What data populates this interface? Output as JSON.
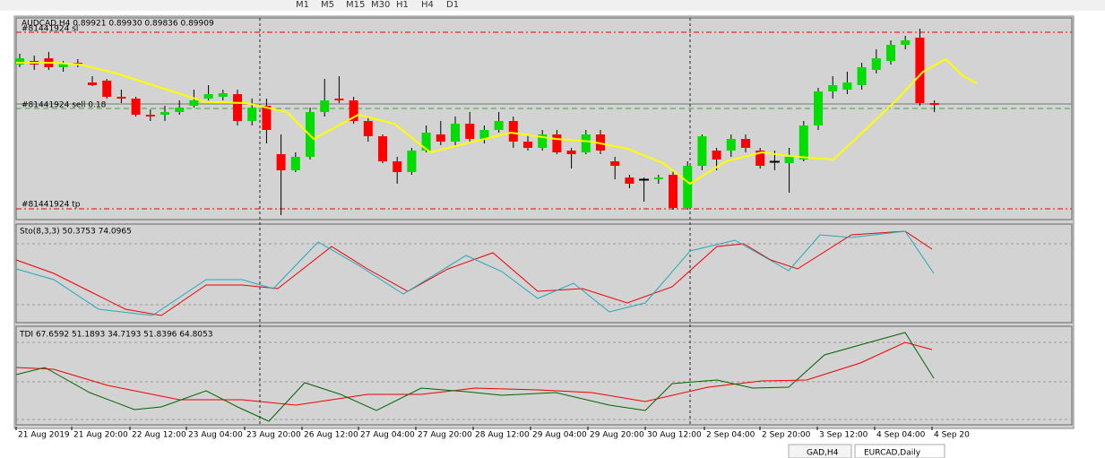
{
  "toolbar": {
    "timeframes": [
      "M1",
      "M5",
      "M15",
      "M30",
      "H1",
      "H4",
      "D1"
    ]
  },
  "main_panel": {
    "header": "AUDCAD,H4  0.89921 0.89930 0.89836 0.89909",
    "order_lines": {
      "sl": "#81441924 sl",
      "entry": "#81441924 sell 0.18",
      "tp": "#81441924 tp"
    }
  },
  "stochastic_panel": {
    "header": "Sto(8,3,3) 50.3753 74.0965"
  },
  "tdi_panel": {
    "header": "TDI 67.6592 51.1893 34.7193 51.8396 64.8053"
  },
  "time_axis": [
    "21 Aug 2019",
    "21 Aug 20:00",
    "22 Aug 12:00",
    "23 Aug 04:00",
    "23 Aug 20:00",
    "26 Aug 12:00",
    "27 Aug 04:00",
    "27 Aug 20:00",
    "28 Aug 12:00",
    "29 Aug 04:00",
    "29 Aug 20:00",
    "30 Aug 12:00",
    "2 Sep 04:00",
    "2 Sep 20:00",
    "3 Sep 12:00",
    "4 Sep 04:00",
    "4 Sep 20"
  ],
  "tabs": [
    "GAD,H4",
    "EURCAD,Daily"
  ]
}
